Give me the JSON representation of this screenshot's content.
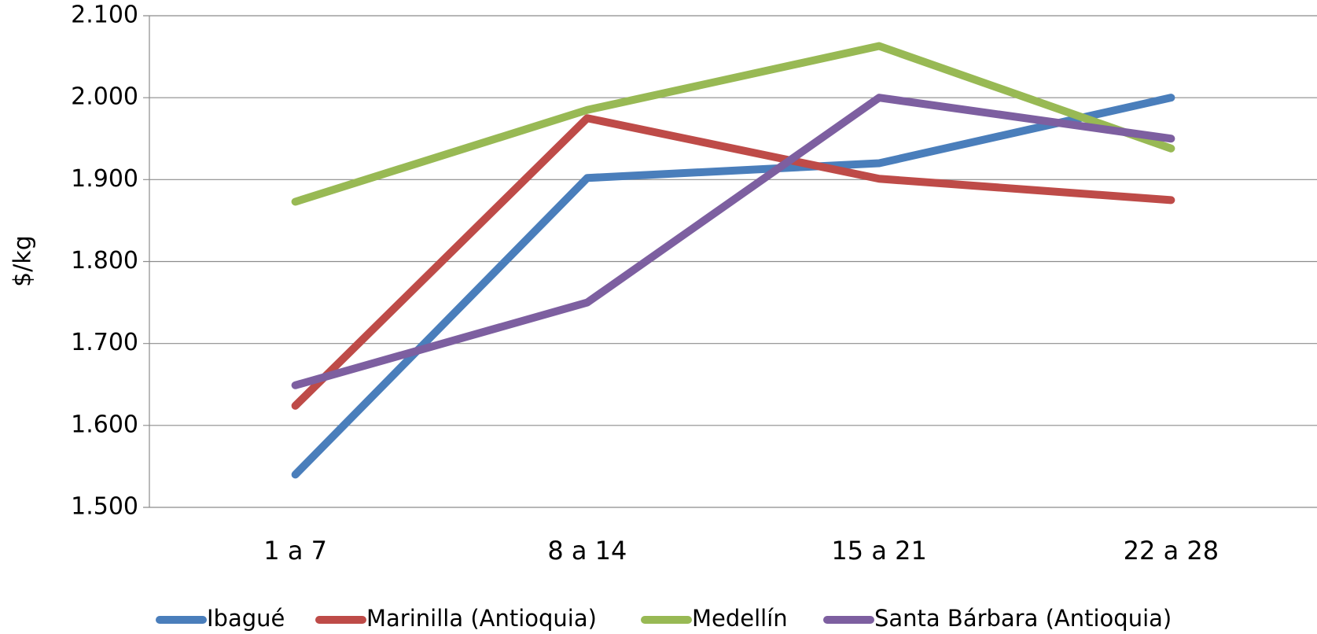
{
  "chart_data": {
    "type": "line",
    "y_label": "$/kg",
    "categories": [
      "1 a 7",
      "8 a 14",
      "15 a 21",
      "22 a 28"
    ],
    "series": [
      {
        "name": "Ibagué",
        "color": "#4a7ebb",
        "values": [
          1540,
          1902,
          1920,
          2000
        ]
      },
      {
        "name": "Marinilla (Antioquia)",
        "color": "#be4b48",
        "values": [
          1624,
          1975,
          1901,
          1875
        ]
      },
      {
        "name": "Medellín",
        "color": "#98b954",
        "values": [
          1873,
          1985,
          2063,
          1938
        ]
      },
      {
        "name": "Santa Bárbara (Antioquia)",
        "color": "#7d5fa0",
        "values": [
          1649,
          1750,
          2000,
          1950
        ]
      }
    ],
    "ylim": [
      1500,
      2100
    ],
    "yticks": [
      {
        "value": 1500,
        "label": "1.500"
      },
      {
        "value": 1600,
        "label": "1.600"
      },
      {
        "value": 1700,
        "label": "1.700"
      },
      {
        "value": 1800,
        "label": "1.800"
      },
      {
        "value": 1900,
        "label": "1.900"
      },
      {
        "value": 2000,
        "label": "2.000"
      },
      {
        "value": 2100,
        "label": "2.100"
      }
    ],
    "grid": true,
    "legend": "bottom"
  }
}
